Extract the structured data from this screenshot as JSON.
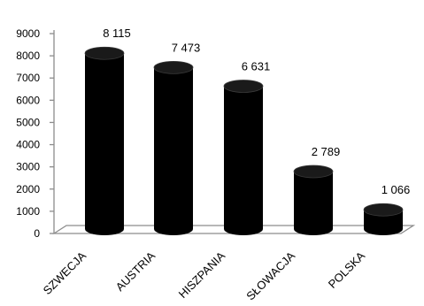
{
  "chart_data": {
    "type": "bar",
    "categories": [
      "SZWECJA",
      "AUSTRIA",
      "HISZPANIA",
      "SŁOWACJA",
      "POLSKA"
    ],
    "values": [
      8115,
      7473,
      6631,
      2789,
      1066
    ],
    "value_labels": [
      "8 115",
      "7 473",
      "6 631",
      "2 789",
      "1 066"
    ],
    "yticks": [
      0,
      1000,
      2000,
      3000,
      4000,
      5000,
      6000,
      7000,
      8000,
      9000
    ],
    "ylim": [
      0,
      9000
    ],
    "grid": false,
    "legend": "none",
    "style": "3d-cylinder",
    "bar_color": "#000000",
    "floor_color": "#ffffff",
    "axis_color": "#8c8c8c"
  }
}
